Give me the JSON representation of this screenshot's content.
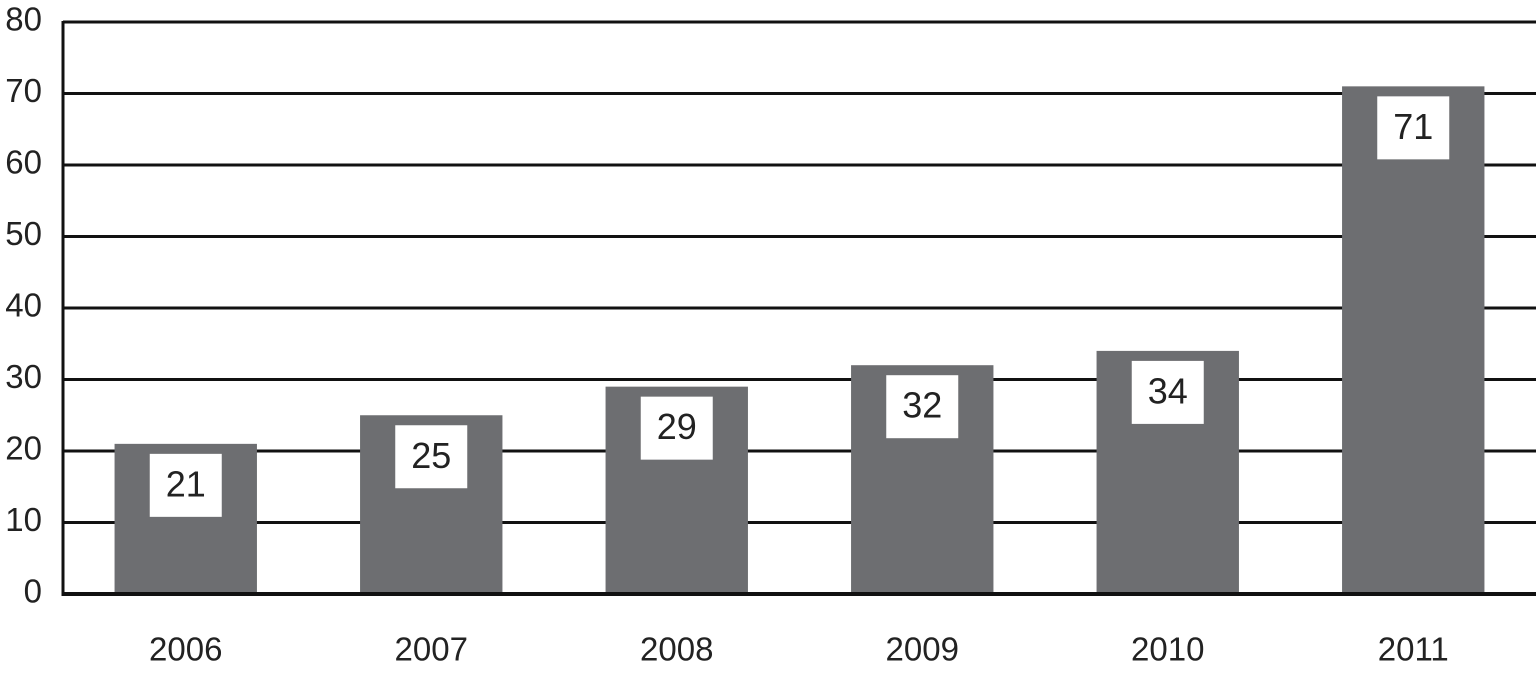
{
  "chart_data": {
    "type": "bar",
    "categories": [
      "2006",
      "2007",
      "2008",
      "2009",
      "2010",
      "2011"
    ],
    "values": [
      21,
      25,
      29,
      32,
      34,
      71
    ],
    "color": "#6d6e71",
    "ylim": [
      0,
      80
    ],
    "yticks": [
      0,
      10,
      20,
      30,
      40,
      50,
      60,
      70,
      80
    ],
    "grid": true
  }
}
